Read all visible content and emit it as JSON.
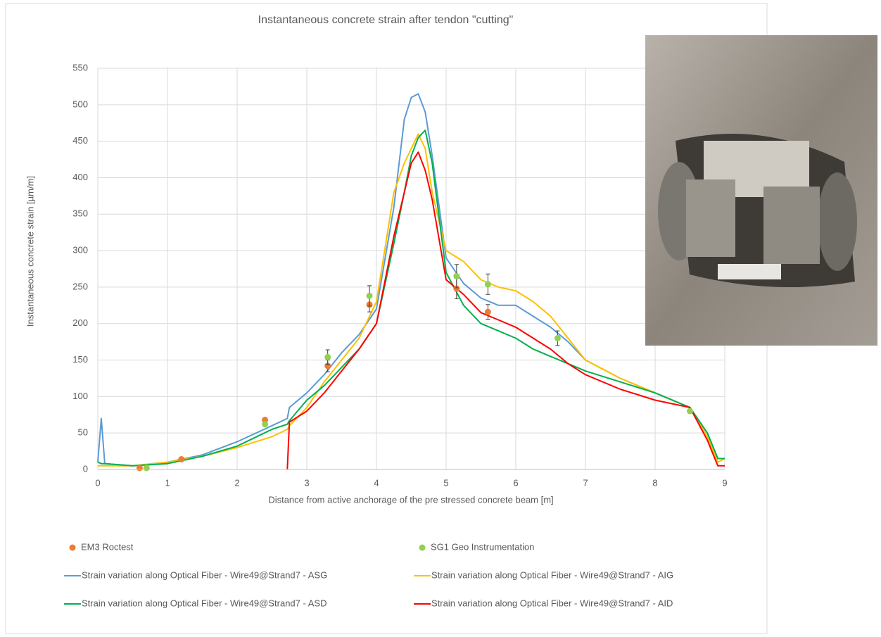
{
  "chart_data": {
    "type": "line",
    "title": "Instantaneous concrete strain after tendon \"cutting\"",
    "x_label": "Distance from active anchorage of the pre stressed concrete beam [m]",
    "y_label": "Instantaneous concrete strain [µm/m]",
    "xlim": [
      0,
      9
    ],
    "xticks": [
      0,
      1,
      2,
      3,
      4,
      5,
      6,
      7,
      8,
      9
    ],
    "ylim": [
      0,
      550
    ],
    "yticks": [
      0,
      50,
      100,
      150,
      200,
      250,
      300,
      350,
      400,
      450,
      500,
      550
    ],
    "grid": true,
    "x": [
      0,
      0.05,
      0.1,
      0.5,
      1,
      1.5,
      2,
      2.5,
      2.72,
      2.75,
      3,
      3.25,
      3.5,
      3.75,
      4,
      4.25,
      4.4,
      4.5,
      4.6,
      4.7,
      4.8,
      5,
      5.25,
      5.5,
      5.75,
      6,
      6.25,
      6.5,
      6.75,
      7,
      7.5,
      8,
      8.5,
      8.75,
      8.9,
      9
    ],
    "series": [
      {
        "name": "EM3 Roctest",
        "mode": "markers",
        "color": "#ed7d31",
        "x": [
          0.6,
          1.2,
          2.4,
          3.3,
          3.9,
          5.15,
          5.6
        ],
        "values": [
          2,
          14,
          68,
          142,
          226,
          248,
          216
        ],
        "errors": [
          0,
          0,
          0,
          8,
          10,
          14,
          10
        ]
      },
      {
        "name": "SG1 Geo Instrumentation",
        "mode": "markers",
        "color": "#92d050",
        "x": [
          0.7,
          2.4,
          3.3,
          3.9,
          5.15,
          5.6,
          6.6,
          8.5
        ],
        "values": [
          2,
          62,
          154,
          238,
          265,
          254,
          180,
          80
        ],
        "errors": [
          0,
          0,
          10,
          14,
          16,
          14,
          10,
          0
        ]
      },
      {
        "name": "Strain variation along Optical Fiber - Wire49@Strand7 - ASG",
        "mode": "lines",
        "color": "#5b9bd5",
        "values": [
          10,
          70,
          8,
          5,
          10,
          20,
          38,
          60,
          70,
          85,
          105,
          130,
          160,
          185,
          220,
          360,
          480,
          510,
          515,
          490,
          430,
          290,
          255,
          235,
          225,
          225,
          210,
          195,
          175,
          150,
          125,
          105,
          85,
          50,
          15,
          15
        ]
      },
      {
        "name": "Strain variation along Optical Fiber - Wire49@Strand7 - AIG",
        "mode": "lines",
        "color": "#ffc000",
        "values": [
          5,
          5,
          5,
          5,
          10,
          18,
          30,
          45,
          55,
          60,
          85,
          120,
          150,
          180,
          230,
          380,
          420,
          440,
          460,
          440,
          380,
          300,
          285,
          260,
          250,
          245,
          230,
          210,
          180,
          150,
          125,
          105,
          85,
          45,
          10,
          15
        ]
      },
      {
        "name": "Strain variation along Optical Fiber - Wire49@Strand7 - ASD",
        "mode": "lines",
        "color": "#00b050",
        "values": [
          10,
          8,
          8,
          5,
          8,
          18,
          32,
          55,
          62,
          67,
          95,
          115,
          140,
          165,
          200,
          310,
          380,
          430,
          455,
          465,
          420,
          270,
          225,
          200,
          190,
          180,
          165,
          155,
          145,
          135,
          120,
          105,
          85,
          50,
          15,
          15
        ]
      },
      {
        "name": "Strain variation along Optical Fiber - Wire49@Strand7 - AID",
        "mode": "lines",
        "color": "#ff0000",
        "values": [
          null,
          null,
          null,
          null,
          null,
          null,
          null,
          null,
          0,
          65,
          80,
          105,
          135,
          165,
          200,
          320,
          380,
          420,
          435,
          410,
          370,
          260,
          240,
          215,
          205,
          195,
          180,
          165,
          145,
          130,
          110,
          95,
          85,
          40,
          5,
          5
        ]
      }
    ]
  }
}
